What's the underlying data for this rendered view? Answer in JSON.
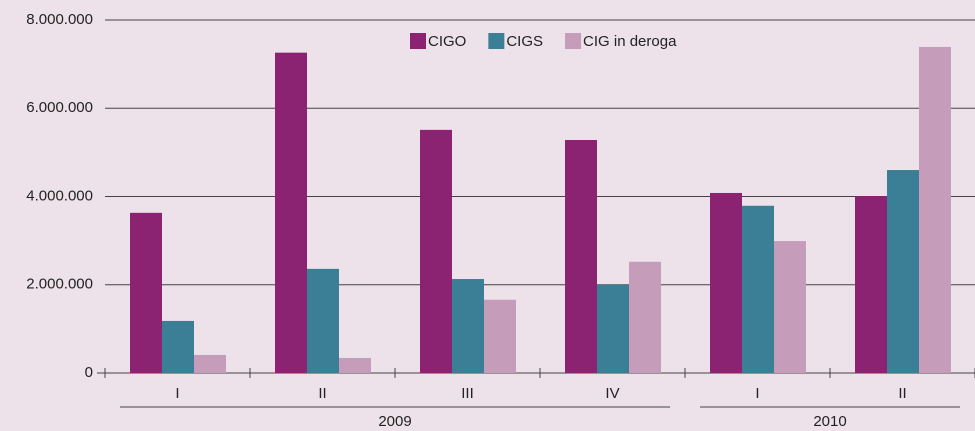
{
  "chart_data": {
    "type": "bar",
    "categories": [
      "I",
      "II",
      "III",
      "IV",
      "I",
      "II"
    ],
    "group_labels": [
      "2009",
      "2010"
    ],
    "series": [
      {
        "name": "CIGO",
        "color": "#8b2272",
        "values": [
          3630000,
          7260000,
          5510000,
          5280000,
          4080000,
          4010000
        ]
      },
      {
        "name": "CIGS",
        "color": "#3b7f96",
        "values": [
          1180000,
          2360000,
          2130000,
          2000000,
          3790000,
          4600000
        ]
      },
      {
        "name": "CIG in deroga",
        "color": "#c59dba",
        "values": [
          410000,
          340000,
          1660000,
          2520000,
          2990000,
          7390000
        ]
      }
    ],
    "ylim": [
      0,
      8000000
    ],
    "yticks": [
      0,
      {
        "value": 2000000,
        "label": "2.000.000"
      },
      {
        "value": 4000000,
        "label": "4.000.000"
      },
      {
        "value": 6000000,
        "label": "6.000.000"
      },
      {
        "value": 8000000,
        "label": "8.000.000"
      }
    ],
    "grid": true,
    "legend": "top"
  }
}
